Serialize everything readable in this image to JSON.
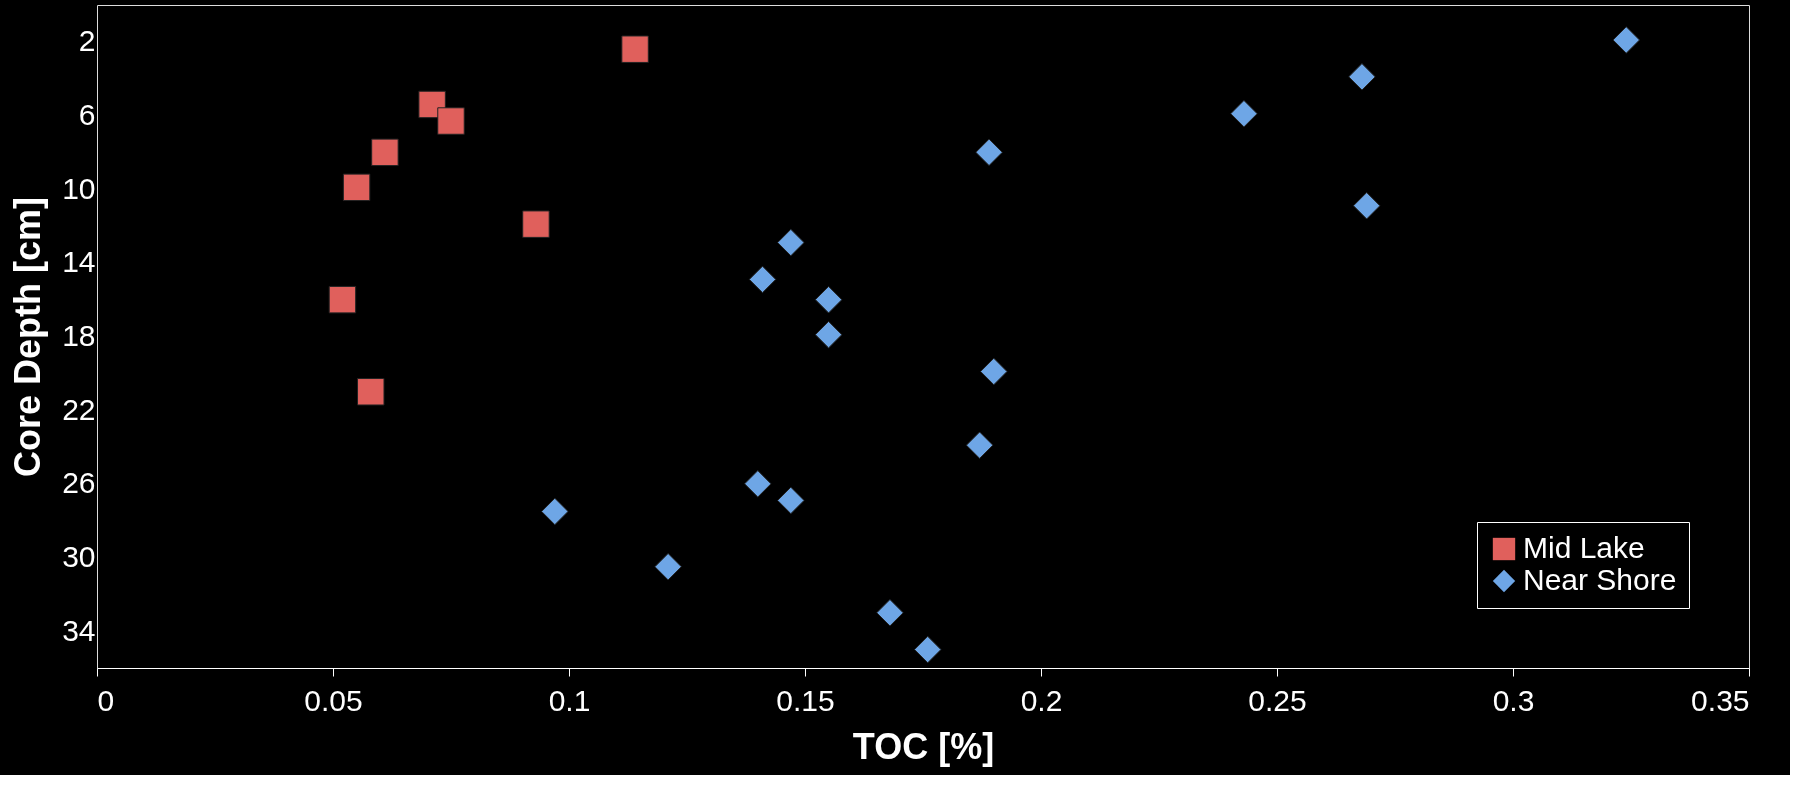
{
  "chart_data": {
    "type": "scatter",
    "xlabel": "TOC [%]",
    "ylabel": "Core Depth [cm]",
    "xlim": [
      0,
      0.35
    ],
    "xticks": [
      0,
      0.05,
      0.1,
      0.15,
      0.2,
      0.25,
      0.3,
      0.35
    ],
    "ylim": [
      36,
      0
    ],
    "yticks": [
      2,
      6,
      10,
      14,
      18,
      22,
      26,
      30,
      34
    ],
    "grid": false,
    "legend": "bottom right",
    "series": [
      {
        "name": "Mid Lake",
        "color": "#e0605c",
        "marker": "square",
        "x": [
          0.114,
          0.071,
          0.075,
          0.061,
          0.055,
          0.093,
          0.052,
          0.058
        ],
        "values": [
          2.4,
          5.4,
          6.3,
          8.0,
          9.9,
          11.9,
          16.0,
          21.0
        ]
      },
      {
        "name": "Near Shore",
        "color": "#6ea6e6",
        "marker": "diamond",
        "x": [
          0.324,
          0.268,
          0.243,
          0.189,
          0.269,
          0.147,
          0.141,
          0.155,
          0.155,
          0.19,
          0.187,
          0.14,
          0.147,
          0.097,
          0.121,
          0.168,
          0.176
        ],
        "values": [
          1.9,
          3.9,
          5.9,
          8.0,
          10.9,
          12.9,
          14.9,
          16.0,
          17.9,
          19.9,
          23.9,
          26.0,
          26.9,
          27.5,
          30.5,
          33.0,
          35.0
        ]
      }
    ]
  }
}
